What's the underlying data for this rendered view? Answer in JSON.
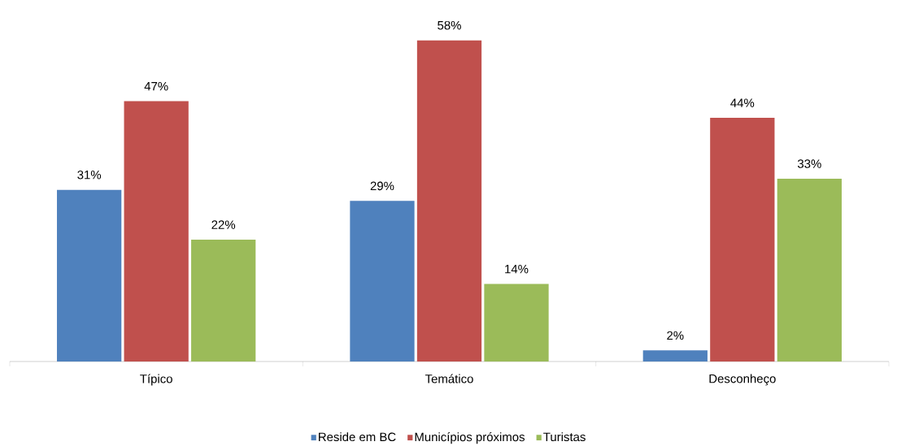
{
  "chart_data": {
    "type": "bar",
    "categories": [
      "Típico",
      "Temático",
      "Desconheço"
    ],
    "series": [
      {
        "name": "Reside em BC",
        "color": "#4f81bd",
        "values": [
          31,
          29,
          2
        ],
        "value_labels": [
          "31%",
          "29%",
          "2%"
        ]
      },
      {
        "name": "Municípios próximos",
        "color": "#c0504d",
        "values": [
          47,
          58,
          44
        ],
        "value_labels": [
          "47%",
          "58%",
          "44%"
        ]
      },
      {
        "name": "Turistas",
        "color": "#9bbb59",
        "values": [
          22,
          14,
          33
        ],
        "value_labels": [
          "22%",
          "14%",
          "33%"
        ]
      }
    ],
    "legend": "bottom"
  }
}
